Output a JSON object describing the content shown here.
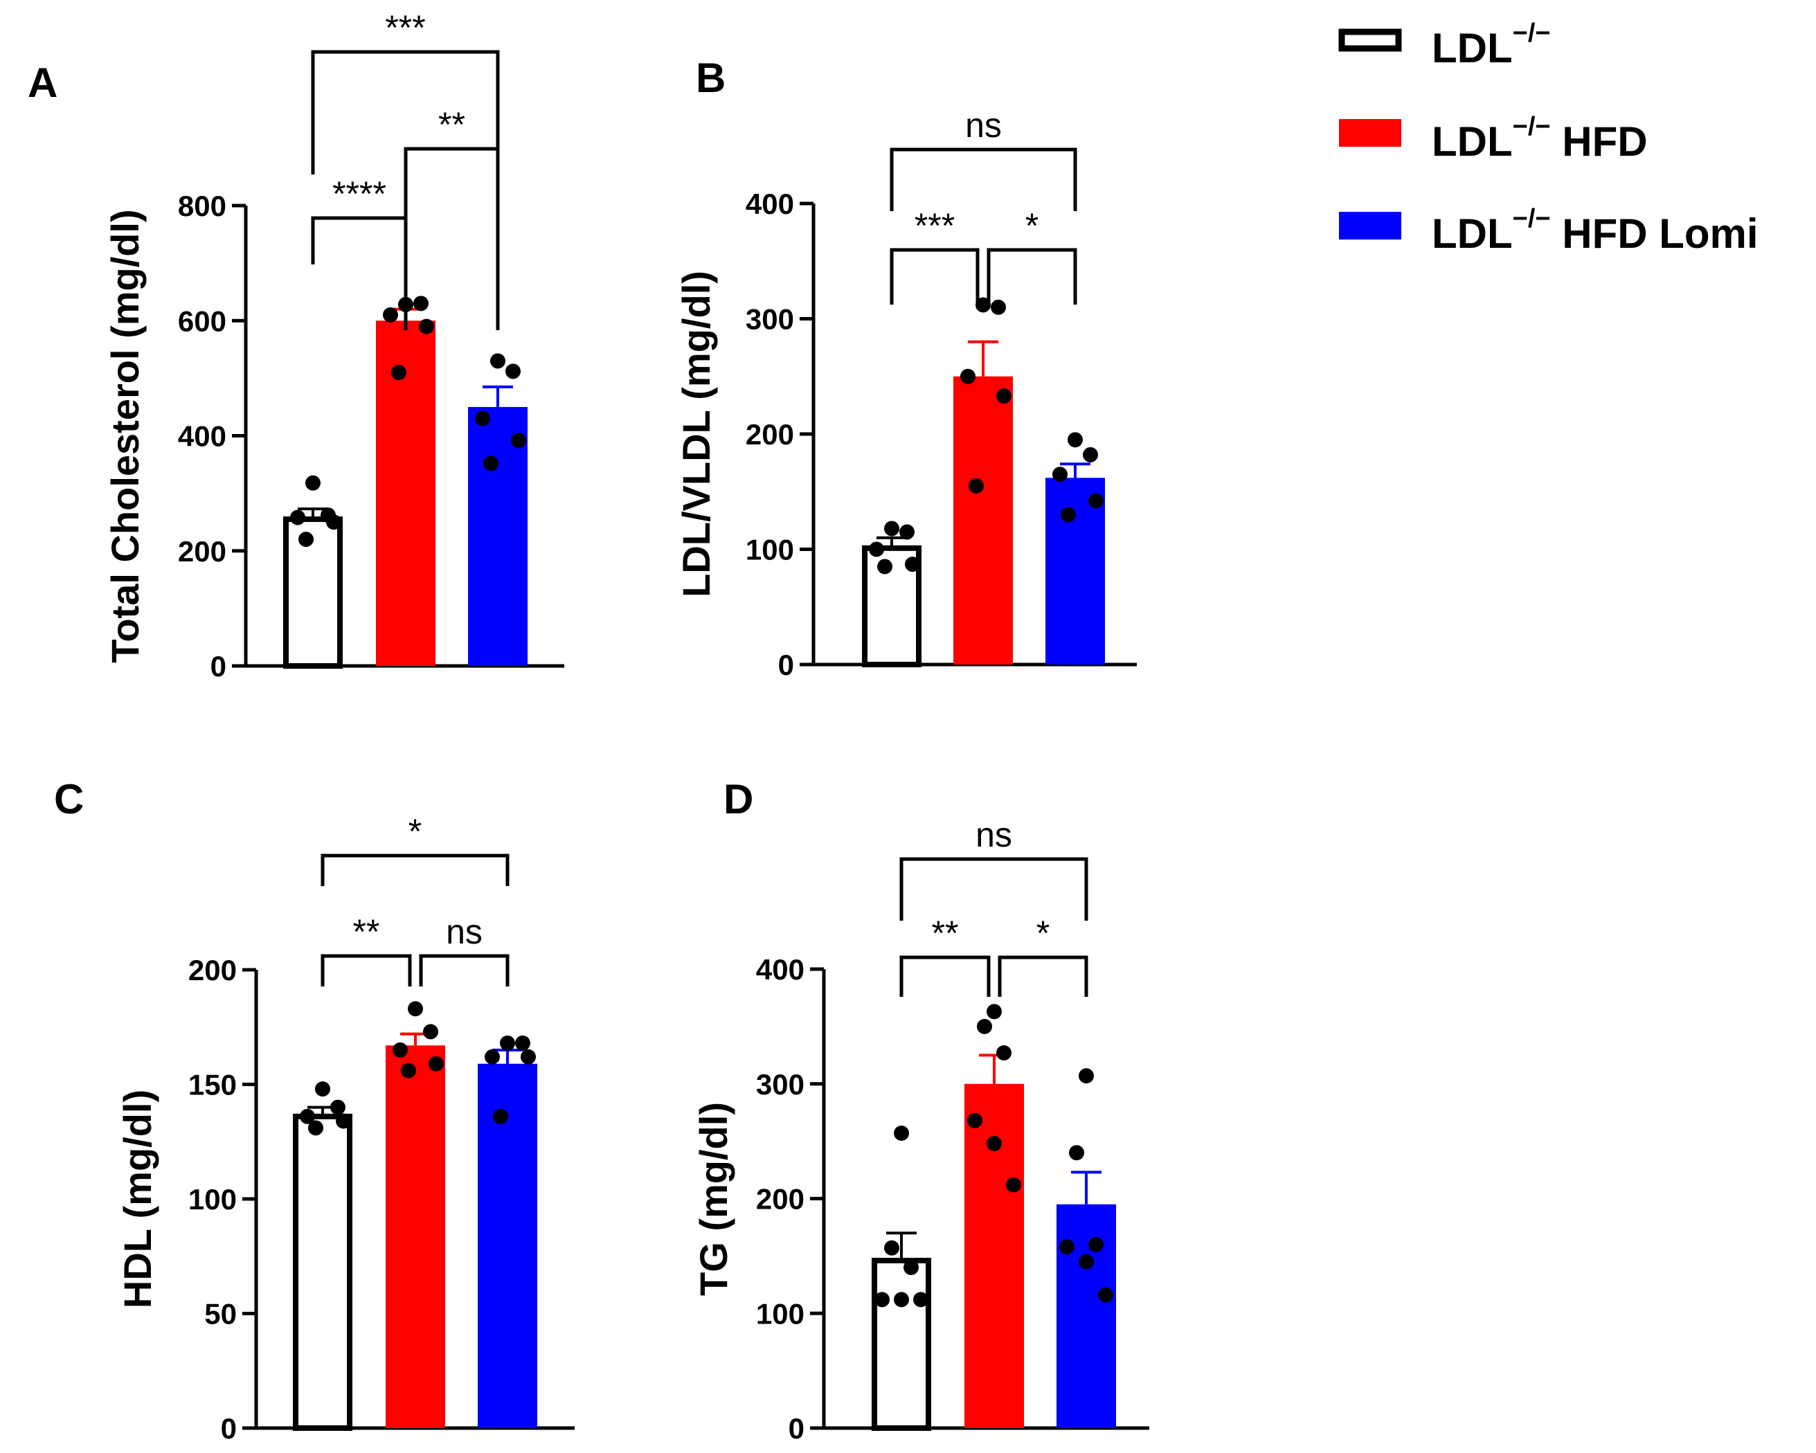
{
  "legend": {
    "items": [
      {
        "label": "LDL",
        "sup": "−/−",
        "suffix": "",
        "fill": "#ffffff",
        "stroke": "#000000"
      },
      {
        "label": "LDL",
        "sup": "−/−",
        "suffix": " HFD",
        "fill": "#ff0000",
        "stroke": "#ff0000"
      },
      {
        "label": "LDL",
        "sup": "−/−",
        "suffix": " HFD Lomi",
        "fill": "#0000ff",
        "stroke": "#0000ff"
      }
    ]
  },
  "chart_data": [
    {
      "panel": "A",
      "type": "bar",
      "ylabel": "Total Cholesterol (mg/dl)",
      "ylim": [
        0,
        800
      ],
      "yticks": [
        0,
        200,
        400,
        600,
        800
      ],
      "categories": [
        "LDL−/−",
        "LDL−/− HFD",
        "LDL−/− HFD Lomi"
      ],
      "colors": [
        "#ffffff",
        "#ff0000",
        "#0000ff"
      ],
      "values": [
        255,
        600,
        450
      ],
      "errors": [
        18,
        20,
        35
      ],
      "points": [
        [
          318,
          262,
          258,
          250,
          220
        ],
        [
          628,
          630,
          610,
          590,
          510
        ],
        [
          530,
          512,
          430,
          392,
          352
        ]
      ],
      "comparisons": [
        {
          "a": 0,
          "b": 1,
          "label": "****"
        },
        {
          "a": 1,
          "b": 2,
          "label": "**"
        },
        {
          "a": 0,
          "b": 2,
          "label": "***"
        }
      ]
    },
    {
      "panel": "B",
      "type": "bar",
      "ylabel": "LDL/VLDL (mg/dl)",
      "ylim": [
        0,
        400
      ],
      "yticks": [
        0,
        100,
        200,
        300,
        400
      ],
      "categories": [
        "LDL−/−",
        "LDL−/− HFD",
        "LDL−/− HFD Lomi"
      ],
      "colors": [
        "#ffffff",
        "#ff0000",
        "#0000ff"
      ],
      "values": [
        101,
        250,
        162
      ],
      "errors": [
        9,
        30,
        12
      ],
      "points": [
        [
          118,
          115,
          100,
          87,
          85
        ],
        [
          312,
          310,
          250,
          233,
          155
        ],
        [
          195,
          182,
          165,
          142,
          130
        ]
      ],
      "comparisons": [
        {
          "a": 0,
          "b": 1,
          "label": "***"
        },
        {
          "a": 1,
          "b": 2,
          "label": "*"
        },
        {
          "a": 0,
          "b": 2,
          "label": "ns"
        }
      ]
    },
    {
      "panel": "C",
      "type": "bar",
      "ylabel": "HDL (mg/dl)",
      "ylim": [
        0,
        200
      ],
      "yticks": [
        0,
        50,
        100,
        150,
        200
      ],
      "categories": [
        "LDL−/−",
        "LDL−/− HFD",
        "LDL−/− HFD Lomi"
      ],
      "colors": [
        "#ffffff",
        "#ff0000",
        "#0000ff"
      ],
      "values": [
        136,
        167,
        159
      ],
      "errors": [
        4,
        5,
        6
      ],
      "points": [
        [
          148,
          140,
          136,
          134,
          131
        ],
        [
          183,
          173,
          165,
          159,
          156
        ],
        [
          168,
          168,
          162,
          162,
          136
        ]
      ],
      "comparisons": [
        {
          "a": 0,
          "b": 1,
          "label": "**"
        },
        {
          "a": 1,
          "b": 2,
          "label": "ns"
        },
        {
          "a": 0,
          "b": 2,
          "label": "*"
        }
      ]
    },
    {
      "panel": "D",
      "type": "bar",
      "ylabel": "TG (mg/dl)",
      "ylim": [
        0,
        400
      ],
      "yticks": [
        0,
        100,
        200,
        300,
        400
      ],
      "categories": [
        "LDL−/−",
        "LDL−/− HFD",
        "LDL−/− HFD Lomi"
      ],
      "colors": [
        "#ffffff",
        "#ff0000",
        "#0000ff"
      ],
      "values": [
        146,
        300,
        195
      ],
      "errors": [
        24,
        25,
        28
      ],
      "points": [
        [
          257,
          157,
          140,
          112,
          112,
          112
        ],
        [
          363,
          350,
          327,
          268,
          248,
          212
        ],
        [
          307,
          240,
          160,
          158,
          145,
          116
        ]
      ],
      "comparisons": [
        {
          "a": 0,
          "b": 1,
          "label": "**"
        },
        {
          "a": 1,
          "b": 2,
          "label": "*"
        },
        {
          "a": 0,
          "b": 2,
          "label": "ns"
        }
      ]
    }
  ]
}
